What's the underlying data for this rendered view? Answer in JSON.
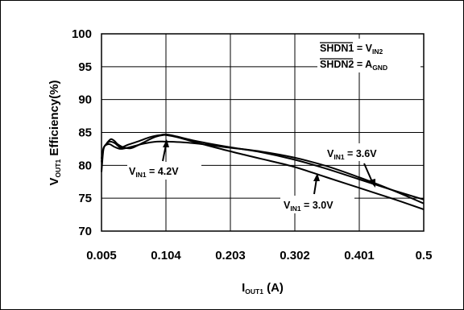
{
  "chart_data": {
    "type": "line",
    "xlabel": {
      "main": "I",
      "sub": "OUT1",
      "tail": " (A)"
    },
    "ylabel": {
      "main": "V",
      "sub": "OUT1",
      "tail": " Efficiency(%)"
    },
    "xlim": [
      0.005,
      0.5
    ],
    "ylim": [
      70,
      100
    ],
    "x_ticks": [
      "0.005",
      "0.104",
      "0.203",
      "0.302",
      "0.401",
      "0.5"
    ],
    "y_ticks": [
      "70",
      "75",
      "80",
      "85",
      "90",
      "95",
      "100"
    ],
    "grid": true,
    "series": [
      {
        "name": "4.2V",
        "label": {
          "main": "V",
          "sub": "IN1",
          "tail": " = 4.2V"
        },
        "x": [
          0.005,
          0.008,
          0.012,
          0.018,
          0.025,
          0.035,
          0.05,
          0.07,
          0.09,
          0.104,
          0.13,
          0.17,
          0.2,
          0.25,
          0.3,
          0.35,
          0.4,
          0.45,
          0.5
        ],
        "y": [
          81.0,
          82.6,
          83.1,
          83.2,
          82.8,
          82.5,
          82.8,
          83.3,
          83.6,
          83.6,
          83.5,
          83.1,
          82.7,
          82.1,
          81.2,
          79.9,
          78.2,
          76.3,
          74.2
        ]
      },
      {
        "name": "3.6V",
        "label": {
          "main": "V",
          "sub": "IN1",
          "tail": " = 3.6V"
        },
        "x": [
          0.005,
          0.008,
          0.012,
          0.018,
          0.025,
          0.03,
          0.035,
          0.045,
          0.06,
          0.08,
          0.095,
          0.104,
          0.12,
          0.15,
          0.2,
          0.25,
          0.3,
          0.35,
          0.4,
          0.45,
          0.5
        ],
        "y": [
          80.5,
          82.5,
          83.2,
          83.6,
          83.4,
          83.0,
          82.7,
          83.1,
          83.6,
          84.3,
          84.6,
          84.7,
          84.4,
          83.7,
          82.8,
          82.0,
          80.9,
          79.5,
          77.9,
          76.3,
          74.8
        ]
      },
      {
        "name": "3.0V",
        "label": {
          "main": "V",
          "sub": "IN1",
          "tail": " = 3.0V"
        },
        "x": [
          0.005,
          0.008,
          0.012,
          0.016,
          0.02,
          0.025,
          0.03,
          0.04,
          0.05,
          0.06,
          0.07,
          0.08,
          0.09,
          0.1,
          0.104,
          0.12,
          0.15,
          0.2,
          0.25,
          0.3,
          0.35,
          0.4,
          0.45,
          0.5
        ],
        "y": [
          79.0,
          82.4,
          83.2,
          83.7,
          84.0,
          83.7,
          83.2,
          82.7,
          82.6,
          83.0,
          83.5,
          84.0,
          84.4,
          84.6,
          84.6,
          84.3,
          83.5,
          82.2,
          81.0,
          79.8,
          78.2,
          76.6,
          75.0,
          73.3
        ]
      }
    ],
    "annotations": [
      {
        "over": "SHDN1",
        "rest": " = V",
        "sub": "IN2"
      },
      {
        "over": "SHDN2",
        "rest": " = A",
        "sub": "GND"
      }
    ]
  }
}
